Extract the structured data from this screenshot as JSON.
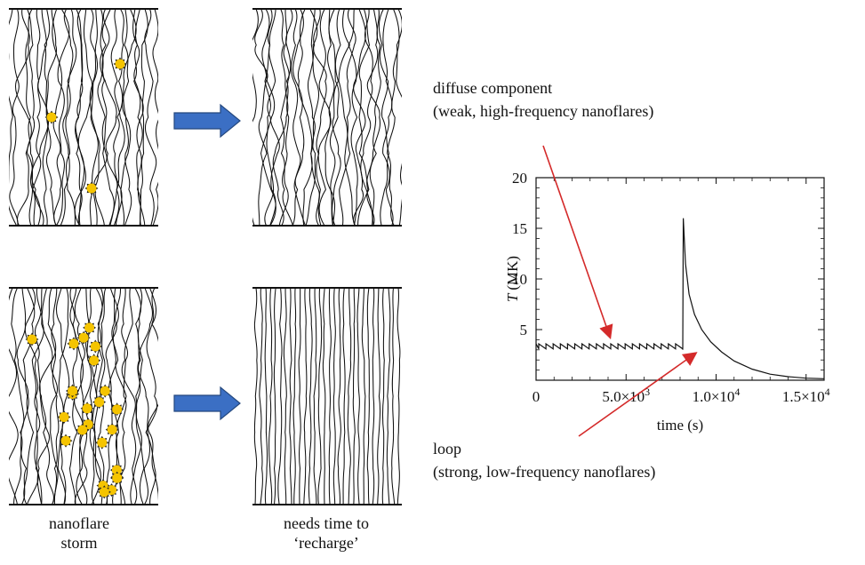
{
  "captions": {
    "storm_line1": "nanoflare",
    "storm_line2": "storm",
    "recharge_line1": "needs time to",
    "recharge_line2": "‘recharge’"
  },
  "annotations": {
    "diffuse_title": "diffuse component",
    "diffuse_detail": "(weak, high-frequency nanoflares)",
    "loop_title": "loop",
    "loop_detail": "(strong, low-frequency nanoflares)"
  },
  "colors": {
    "arrow_fill": "#3b6fc4",
    "arrow_stroke": "#24487e",
    "nanoflare": "#f5c400",
    "red_arrow": "#d42a2a",
    "strand": "#111111"
  },
  "icons": [
    "right-arrow-icon",
    "nanoflare-burst-icon"
  ],
  "panels": {
    "top_left_flares": 3,
    "bottom_left_flares": 24
  },
  "chart_data": {
    "type": "line",
    "title": "",
    "ylabel_var": "T",
    "ylabel_unit": "(MK)",
    "xlabel": "time (s)",
    "xlim": [
      0,
      16000
    ],
    "ylim": [
      0,
      20
    ],
    "x_ticks": [
      0,
      5000,
      10000,
      15000
    ],
    "x_tick_labels": [
      {
        "text": "0",
        "base": "0",
        "exp": ""
      },
      {
        "text": "5.0×10^3",
        "base": "5.0×10",
        "exp": "3"
      },
      {
        "text": "1.0×10^4",
        "base": "1.0×10",
        "exp": "4"
      },
      {
        "text": "1.5×10^4",
        "base": "1.5×10",
        "exp": "4"
      }
    ],
    "y_ticks": [
      5,
      10,
      15,
      20
    ],
    "y_tick_labels": [
      "5",
      "10",
      "15",
      "20"
    ],
    "series": [
      {
        "x": [
          0,
          150,
          150,
          550,
          550,
          950,
          950,
          1350,
          1350,
          1750,
          1750,
          2150,
          2150,
          2550,
          2550,
          2950,
          2950,
          3350,
          3350,
          3750,
          3750,
          4150,
          4150,
          4550,
          4550,
          4950,
          4950,
          5350,
          5350,
          5750,
          5750,
          6150,
          6150,
          6550,
          6550,
          6950,
          6950,
          7350,
          7350,
          7750,
          7750,
          8150,
          8150,
          8180,
          8300,
          8500,
          8800,
          9200,
          9700,
          10300,
          11000,
          12000,
          13000,
          14000,
          15000,
          16000
        ],
        "y": [
          3.6,
          3.1,
          3.6,
          3.1,
          3.6,
          3.1,
          3.6,
          3.1,
          3.6,
          3.1,
          3.6,
          3.1,
          3.6,
          3.1,
          3.6,
          3.1,
          3.6,
          3.1,
          3.6,
          3.1,
          3.6,
          3.1,
          3.6,
          3.1,
          3.6,
          3.1,
          3.6,
          3.1,
          3.6,
          3.1,
          3.6,
          3.1,
          3.6,
          3.1,
          3.6,
          3.1,
          3.6,
          3.1,
          3.6,
          3.1,
          3.6,
          3.1,
          3.0,
          16.0,
          11.5,
          8.5,
          6.5,
          5.0,
          3.8,
          2.8,
          1.9,
          1.1,
          0.6,
          0.35,
          0.2,
          0.15
        ]
      }
    ]
  }
}
